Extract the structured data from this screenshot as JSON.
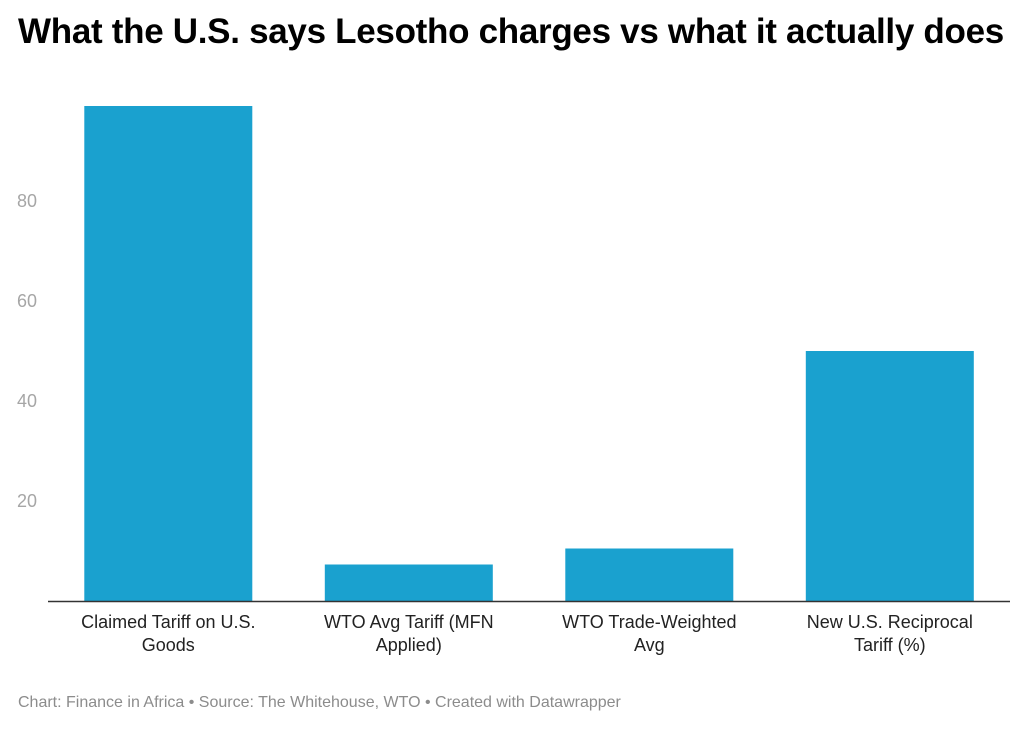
{
  "chart_data": {
    "type": "bar",
    "title": "What the U.S. says Lesotho charges vs what it actually does",
    "categories": [
      [
        "Claimed Tariff on U.S.",
        "Goods"
      ],
      [
        "WTO Avg Tariff (MFN",
        "Applied)"
      ],
      [
        "WTO Trade-Weighted",
        "Avg"
      ],
      [
        "New U.S. Reciprocal",
        "Tariff (%)"
      ]
    ],
    "values": [
      99,
      7.3,
      10.5,
      50
    ],
    "ylim": [
      0,
      100
    ],
    "yticks": [
      20,
      40,
      60,
      80
    ],
    "xlabel": "",
    "ylabel": "",
    "grid": false,
    "bar_color": "#1aa1cf",
    "axis_color": "#333333"
  },
  "footer": {
    "text": "Chart: Finance in Africa • Source: The Whitehouse, WTO • Created with Datawrapper"
  }
}
